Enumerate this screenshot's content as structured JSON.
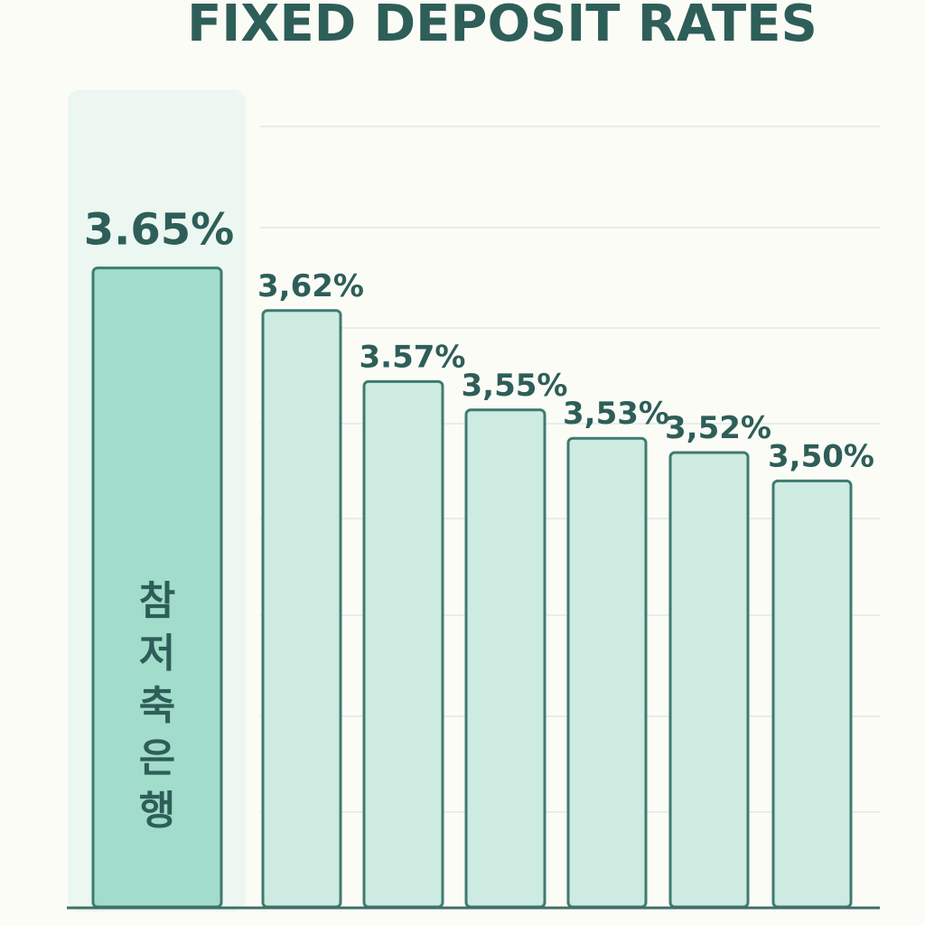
{
  "chart_data": {
    "type": "bar",
    "title": "FIXED DEPOSIT RATES",
    "categories": [
      "참저축은행",
      "",
      "",
      "",
      "",
      "",
      ""
    ],
    "values": [
      3.65,
      3.62,
      3.57,
      3.55,
      3.53,
      3.52,
      3.5
    ],
    "value_labels": [
      "3.65%",
      "3,62%",
      "3.57%",
      "3,55%",
      "3,53%",
      "3,52%",
      "3,50%"
    ],
    "highlight_index": 0,
    "xlabel": "",
    "ylabel": "",
    "ylim": [
      3.2,
      3.7
    ],
    "grid": true,
    "legend": "none",
    "colors": {
      "background": "#fcfcf7",
      "title": "#2e5e58",
      "label": "#2e5e58",
      "bar_fill": "#cdebe1",
      "bar_fill_highlight": "#a2dccb",
      "bar_stroke": "#3f7a70",
      "highlight_panel": "#ecf7f1",
      "gridline": "#e6eee8",
      "baseline": "#3f6f68"
    }
  }
}
